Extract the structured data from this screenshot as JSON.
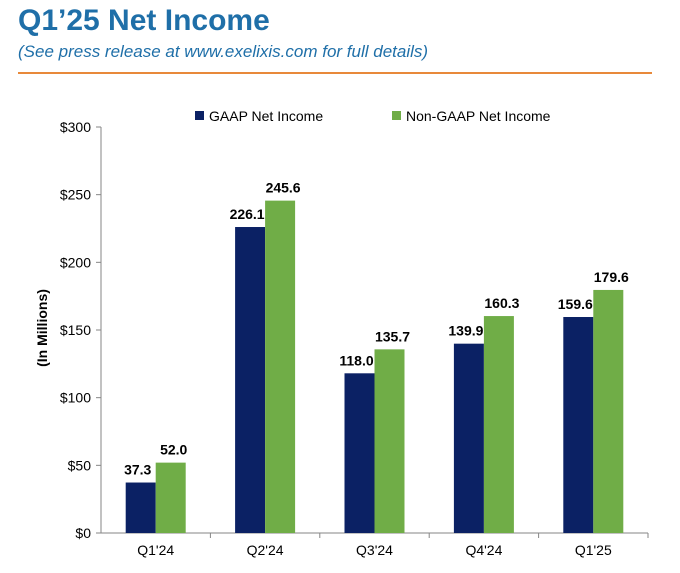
{
  "header": {
    "title": "Q1’25 Net Income",
    "subtitle": "(See press release at www.exelixis.com for full details)"
  },
  "colors": {
    "title": "#1f6fa8",
    "rule": "#e8893a",
    "gaap": "#0b2164",
    "nongaap": "#70ad47"
  },
  "chart_data": {
    "type": "bar",
    "categories": [
      "Q1'24",
      "Q2'24",
      "Q3'24",
      "Q4'24",
      "Q1'25"
    ],
    "series": [
      {
        "name": "GAAP Net Income",
        "values": [
          37.3,
          226.1,
          118.0,
          139.9,
          159.6
        ]
      },
      {
        "name": "Non-GAAP Net Income",
        "values": [
          52.0,
          245.6,
          135.7,
          160.3,
          179.6
        ]
      }
    ],
    "value_labels": [
      [
        "37.3",
        "226.1",
        "118.0",
        "139.9",
        "159.6"
      ],
      [
        "52.0",
        "245.6",
        "135.7",
        "160.3",
        "179.6"
      ]
    ],
    "yticks": [
      0,
      50,
      100,
      150,
      200,
      250,
      300
    ],
    "ytick_labels": [
      "$0",
      "$50",
      "$100",
      "$150",
      "$200",
      "$250",
      "$300"
    ],
    "ylabel": "(In Millions)",
    "ylim": [
      0,
      300
    ],
    "grid": false,
    "legend_position": "top-center"
  }
}
